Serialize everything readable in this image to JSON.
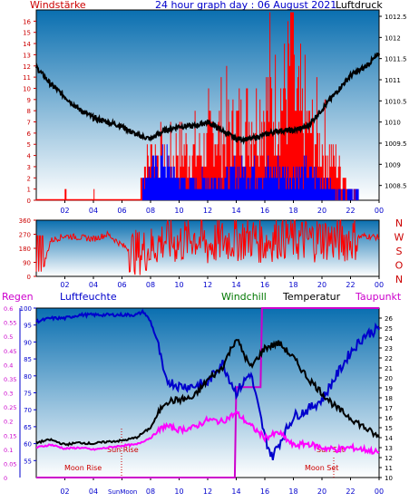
{
  "header": {
    "title": "24 hour graph day : 06 August 2021",
    "left_label": "Windstärke",
    "right_label": "Luftdruck"
  },
  "labels": {
    "regen": "Regen",
    "luftfeuchte": "Luftfeuchte",
    "windchill": "Windchill",
    "temperatur": "Temperatur",
    "taupunkt": "Taupunkt",
    "sun_rise": "Sun Rise",
    "sun_set": "Sun Set",
    "moon_rise": "Moon Rise",
    "moon_set": "Moon Set",
    "sunmoon_marker": "SunMoon"
  },
  "colors": {
    "wind_speed": "#ff0000",
    "wind_gust": "#0000ff",
    "pressure": "#000000",
    "direction": "#ff0000",
    "humidity": "#0000cc",
    "windchill": "#007700",
    "temperature": "#000000",
    "dewpoint": "#ff00ff",
    "rain": "#cc00cc",
    "plot_top": "#0a6fb0",
    "plot_bottom": "#ffffff",
    "text_red": "#cc0000",
    "text_blue": "#0000cc",
    "text_green": "#007700",
    "text_magenta": "#cc00cc"
  },
  "chart_data": [
    {
      "type": "bar",
      "id": "wind",
      "title": "24 hour graph day : 06 August 2021",
      "ylabel": "Windstärke",
      "y2label": "Luftdruck",
      "x_ticks": [
        "02",
        "04",
        "06",
        "08",
        "10",
        "12",
        "14",
        "16",
        "18",
        "20",
        "22",
        "00"
      ],
      "ylim": [
        0,
        17
      ],
      "y_ticks": [
        0,
        1,
        2,
        3,
        4,
        5,
        6,
        7,
        8,
        9,
        10,
        11,
        12,
        13,
        14,
        15,
        16
      ],
      "y2lim": [
        1008.15,
        1012.65
      ],
      "y2_ticks": [
        "1008.5",
        "1009",
        "1009.5",
        "1010",
        "1010.5",
        "1011",
        "1011.5",
        "1012",
        "1012.5"
      ],
      "series": [
        {
          "name": "Windstärke",
          "color": "#ff0000",
          "x": [
            0,
            2,
            2.1,
            4,
            4.1,
            6,
            7,
            7.5,
            7.6,
            8,
            8.5,
            9,
            10,
            11,
            12,
            12.5,
            13,
            14,
            15,
            16,
            17,
            17.5,
            17.9,
            18,
            18.5,
            19,
            20,
            21,
            21.5,
            22,
            22.5,
            23,
            24
          ],
          "y": [
            0,
            0,
            1,
            0,
            1,
            0,
            1,
            3,
            4,
            5,
            5,
            3,
            6,
            5,
            6,
            8,
            7,
            8,
            9,
            10,
            11,
            12,
            17,
            11,
            9,
            8,
            6,
            4,
            3,
            1,
            1,
            2,
            1
          ]
        },
        {
          "name": "Luftdruck",
          "color": "#000000",
          "axis": "right",
          "x": [
            0,
            1,
            2,
            3,
            4,
            5,
            6,
            7,
            8,
            9,
            10,
            11,
            12,
            13,
            14,
            15,
            16,
            17,
            18,
            19,
            20,
            21,
            22,
            23,
            24
          ],
          "y": [
            1011.3,
            1010.9,
            1010.6,
            1010.3,
            1010.1,
            1010.0,
            1009.9,
            1009.7,
            1009.6,
            1009.8,
            1009.9,
            1009.9,
            1010.0,
            1009.8,
            1009.6,
            1009.6,
            1009.7,
            1009.8,
            1009.8,
            1009.9,
            1010.3,
            1010.7,
            1011.1,
            1011.3,
            1011.6
          ]
        },
        {
          "name": "Böen",
          "color": "#0000ff",
          "x": [
            7.5,
            8,
            9,
            10,
            11,
            12,
            13,
            14,
            15,
            16,
            17,
            18,
            19,
            20,
            21,
            22,
            23
          ],
          "y": [
            2,
            3,
            4,
            2,
            2,
            2,
            2,
            3,
            3,
            3,
            3,
            3,
            3,
            2,
            1,
            1,
            0
          ]
        }
      ]
    },
    {
      "type": "line",
      "id": "direction",
      "ylim": [
        0,
        360
      ],
      "y_ticks": [
        0,
        90,
        180,
        270,
        360
      ],
      "right_labels": [
        "N",
        "W",
        "S",
        "O",
        "N"
      ],
      "x_ticks": [
        "02",
        "04",
        "06",
        "08",
        "10",
        "12",
        "14",
        "16",
        "18",
        "20",
        "22",
        "00"
      ],
      "series": [
        {
          "name": "Windrichtung",
          "color": "#ff0000",
          "x": [
            0,
            0.5,
            1,
            2,
            3,
            4,
            5,
            6,
            7,
            8,
            9,
            10,
            11,
            12,
            13,
            14,
            15,
            16,
            17,
            18,
            19,
            20,
            21,
            22,
            23,
            24
          ],
          "y": [
            250,
            60,
            230,
            260,
            250,
            240,
            270,
            200,
            150,
            180,
            240,
            210,
            260,
            200,
            230,
            240,
            250,
            220,
            260,
            240,
            230,
            250,
            230,
            240,
            260,
            250
          ]
        }
      ]
    },
    {
      "type": "line",
      "id": "temp_humidity",
      "ylabel": "Luftfeuchte",
      "y2label": "Temperatur",
      "ylim": [
        50,
        100
      ],
      "y_ticks": [
        55,
        60,
        65,
        70,
        75,
        80,
        85,
        90,
        95,
        100
      ],
      "rain_ticks": [
        0,
        0.05,
        0.1,
        0.15,
        0.2,
        0.25,
        0.3,
        0.35,
        0.4,
        0.45,
        0.5,
        0.55,
        0.6
      ],
      "y2lim": [
        10,
        27
      ],
      "y2_ticks": [
        10,
        11,
        12,
        13,
        14,
        15,
        16,
        17,
        18,
        19,
        20,
        21,
        22,
        23,
        24,
        25,
        26
      ],
      "x_ticks": [
        "02",
        "04",
        "06",
        "08",
        "10",
        "12",
        "14",
        "16",
        "18",
        "20",
        "22",
        "00"
      ],
      "series": [
        {
          "name": "Luftfeuchte",
          "color": "#0000cc",
          "axis": "left",
          "x": [
            0,
            1,
            2,
            3,
            4,
            5,
            6,
            7,
            7.5,
            8,
            8.5,
            9,
            10,
            11,
            12,
            13,
            14,
            15,
            16,
            16.5,
            17,
            18,
            19,
            20,
            21,
            22,
            23,
            24
          ],
          "y": [
            96,
            97,
            97,
            98,
            98,
            98,
            98,
            98,
            99,
            96,
            90,
            79,
            77,
            77,
            78,
            84,
            75,
            81,
            62,
            56,
            60,
            68,
            70,
            73,
            80,
            87,
            92,
            94
          ]
        },
        {
          "name": "Temperatur",
          "color": "#000000",
          "axis": "right",
          "x": [
            0,
            1,
            2,
            3,
            4,
            5,
            6,
            7,
            8,
            9,
            10,
            11,
            12,
            13,
            14,
            15,
            16,
            17,
            18,
            19,
            20,
            21,
            22,
            23,
            24
          ],
          "y": [
            13.5,
            13.8,
            13.3,
            13.5,
            13.4,
            13.6,
            13.7,
            14,
            15,
            17.6,
            17.8,
            18,
            19.8,
            21,
            24,
            21,
            23,
            23.5,
            22,
            20,
            18.5,
            17,
            16,
            15,
            14
          ]
        },
        {
          "name": "Taupunkt",
          "color": "#ff00ff",
          "axis": "right",
          "x": [
            0,
            1,
            2,
            3,
            4,
            5,
            6,
            7,
            8,
            9,
            10,
            11,
            12,
            13,
            14,
            15,
            16,
            17,
            18,
            19,
            20,
            21,
            22,
            23,
            24
          ],
          "y": [
            13,
            13.3,
            12.9,
            13,
            12.8,
            13,
            13.2,
            13.3,
            14,
            15.2,
            14.8,
            15,
            15.8,
            15.6,
            16.5,
            15.2,
            14,
            14.5,
            13.2,
            13.4,
            13,
            12.8,
            13,
            12.8,
            12.5
          ]
        },
        {
          "name": "Regen",
          "color": "#cc00cc",
          "axis": "rain",
          "step": true,
          "x": [
            0,
            13.9,
            14,
            15.7,
            15.8,
            24
          ],
          "y": [
            0,
            0,
            0.32,
            0.32,
            0.6,
            0.6
          ]
        }
      ]
    }
  ]
}
